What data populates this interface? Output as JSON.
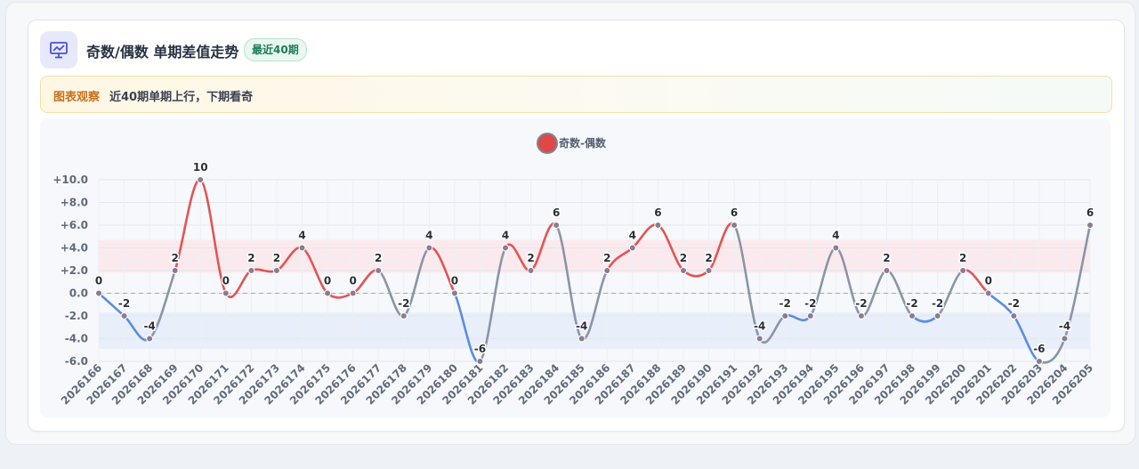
{
  "header": {
    "title": "奇数/偶数 单期差值走势",
    "badge": "最近40期",
    "icon": "chart-presentation-icon"
  },
  "notice": {
    "label": "图表观察",
    "text": "近40期单期上行，下期看奇"
  },
  "colors": {
    "up": "#e15555",
    "down": "#5a8ee0",
    "flat": "#8a95a6",
    "marker": "#8b7c92",
    "legend": "#e04848",
    "upperBand": "#fbe7ea",
    "lowerBand": "#e6ecfa"
  },
  "chart_data": {
    "type": "line",
    "legend": "奇数-偶数",
    "legend_position": "top-center",
    "categories": [
      "2026166",
      "2026167",
      "2026168",
      "2026169",
      "2026170",
      "2026171",
      "2026172",
      "2026173",
      "2026174",
      "2026175",
      "2026176",
      "2026177",
      "2026178",
      "2026179",
      "2026180",
      "2026181",
      "2026182",
      "2026183",
      "2026184",
      "2026185",
      "2026186",
      "2026187",
      "2026188",
      "2026189",
      "2026190",
      "2026191",
      "2026192",
      "2026193",
      "2026194",
      "2026195",
      "2026196",
      "2026197",
      "2026198",
      "2026199",
      "2026200",
      "2026201",
      "2026202",
      "2026203",
      "2026204",
      "2026205"
    ],
    "values": [
      0,
      -2,
      -4,
      2,
      10,
      0,
      2,
      2,
      4,
      0,
      0,
      2,
      -2,
      4,
      0,
      -6,
      4,
      2,
      6,
      -4,
      2,
      4,
      6,
      2,
      2,
      6,
      -4,
      -2,
      -2,
      4,
      -2,
      2,
      -2,
      -2,
      2,
      0,
      -2,
      -6,
      -4,
      6
    ],
    "yticks": [
      "+10.0",
      "+8.0",
      "+6.0",
      "+4.0",
      "+2.0",
      "0.0",
      "-2.0",
      "-4.0",
      "-6.0"
    ],
    "ylim": [
      -6,
      10
    ],
    "bands": [
      {
        "from": 1.8,
        "to": 4.7
      },
      {
        "from": -4.9,
        "to": -1.7
      }
    ],
    "grid": true
  }
}
